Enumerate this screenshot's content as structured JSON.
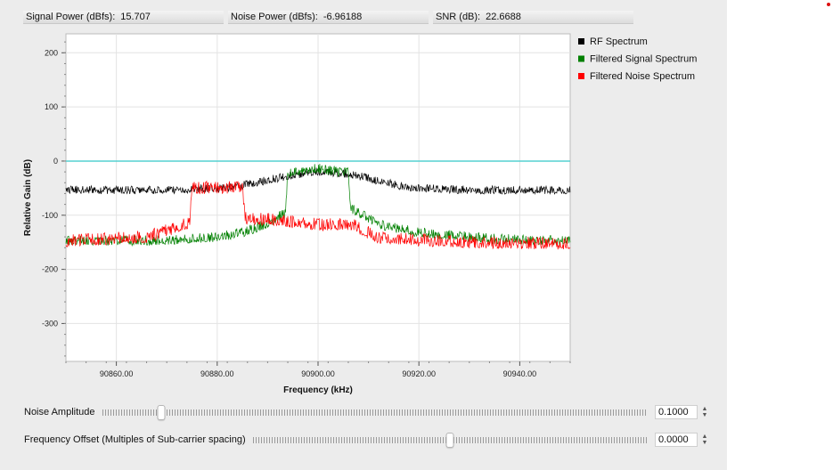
{
  "readouts": [
    {
      "label": "Signal Power (dBfs):",
      "value": "15.707"
    },
    {
      "label": "Noise Power (dBfs):",
      "value": "-6.96188"
    },
    {
      "label": "SNR (dB):",
      "value": "22.6688"
    }
  ],
  "controls": {
    "noise_amplitude": {
      "label": "Noise Amplitude",
      "value": "0.1000",
      "slider_fraction": 0.108
    },
    "frequency_offset": {
      "label": "Frequency Offset (Multiples of Sub-carrier spacing)",
      "value": "0.0000",
      "slider_fraction": 0.5
    }
  },
  "colors": {
    "rf": "#000000",
    "signal": "#008000",
    "noise": "#ff0000",
    "threshold": "#55d0d0",
    "app_bg": "#ececec"
  },
  "chart_data": {
    "type": "line",
    "title": "",
    "xlabel": "Frequency (kHz)",
    "ylabel": "Relative Gain (dB)",
    "xlim": [
      90850,
      90950
    ],
    "ylim": [
      -370,
      235
    ],
    "x_ticks": [
      90860,
      90880,
      90900,
      90920,
      90940
    ],
    "x_tick_labels": [
      "90860.00",
      "90880.00",
      "90900.00",
      "90920.00",
      "90940.00"
    ],
    "y_ticks": [
      200,
      100,
      0,
      -100,
      -200,
      -300
    ],
    "y_tick_labels": [
      "200",
      "100",
      "0",
      "-100",
      "-200",
      "-300"
    ],
    "grid": true,
    "legend_position": "right",
    "reference_line": {
      "y": 0,
      "color": "#55d0d0"
    },
    "series": [
      {
        "name": "RF Spectrum",
        "color": "#000000",
        "x": [
          90850,
          90870,
          90882,
          90888,
          90894,
          90900,
          90906,
          90912,
          90918,
          90930,
          90950
        ],
        "y": [
          -52,
          -52,
          -48,
          -38,
          -26,
          -18,
          -22,
          -35,
          -48,
          -52,
          -52
        ],
        "noise_amplitude": 9
      },
      {
        "name": "Filtered Signal Spectrum",
        "color": "#008000",
        "x": [
          90850,
          90870,
          90880,
          90886,
          90890,
          90893.5,
          90894,
          90900,
          90906,
          90906.5,
          90912,
          90920,
          90935,
          90950
        ],
        "y": [
          -145,
          -145,
          -138,
          -128,
          -112,
          -95,
          -20,
          -12,
          -20,
          -85,
          -115,
          -130,
          -142,
          -145
        ],
        "noise_amplitude": 11
      },
      {
        "name": "Filtered Noise Spectrum",
        "color": "#ff0000",
        "x": [
          90850,
          90866,
          90874.5,
          90875,
          90885,
          90885.5,
          90893,
          90900,
          90907,
          90912,
          90930,
          90950
        ],
        "y": [
          -145,
          -138,
          -112,
          -48,
          -45,
          -102,
          -108,
          -115,
          -115,
          -140,
          -148,
          -150
        ],
        "noise_amplitude": 14
      }
    ]
  }
}
